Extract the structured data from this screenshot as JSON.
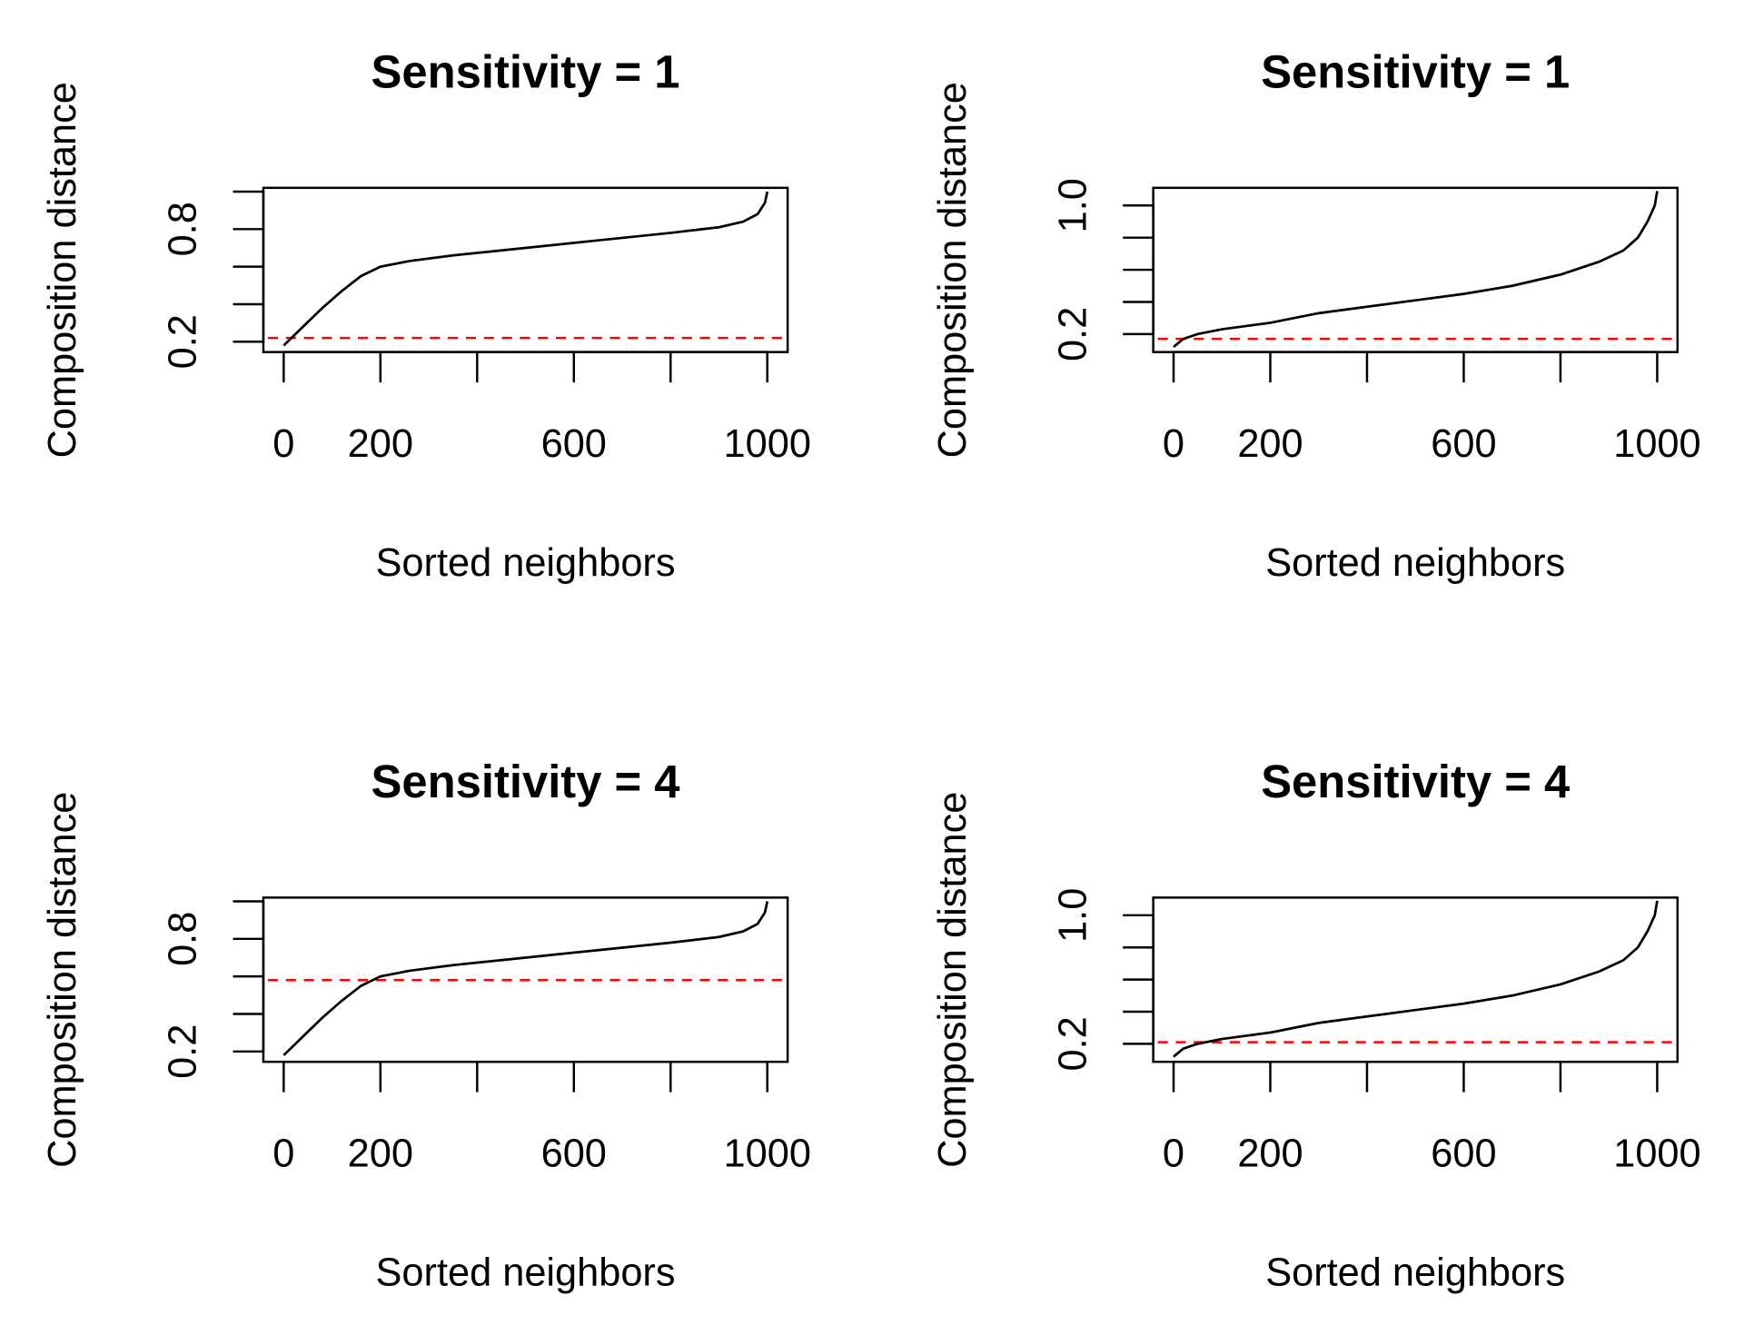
{
  "chart_data": [
    {
      "type": "line",
      "title": "Sensitivity =  1",
      "x_label": "Sorted neighbors",
      "y_label": "Composition distance",
      "x": [
        0,
        40,
        80,
        120,
        160,
        200,
        260,
        350,
        500,
        650,
        800,
        900,
        950,
        980,
        995,
        1000
      ],
      "series": [
        {
          "color": "#000000",
          "values": [
            0.18,
            0.28,
            0.38,
            0.47,
            0.55,
            0.6,
            0.63,
            0.66,
            0.7,
            0.74,
            0.78,
            0.81,
            0.84,
            0.88,
            0.94,
            1.0
          ]
        }
      ],
      "hline": 0.22,
      "hline_color": "#ff0000",
      "xlim": [
        -42,
        1042
      ],
      "ylim": [
        0.145,
        1.02
      ],
      "xticks": [
        0,
        200,
        {
          "value": 400,
          "label": null
        },
        600,
        {
          "value": 800,
          "label": null
        },
        1000
      ],
      "yticks": [
        0.2,
        {
          "value": 0.4,
          "label": null
        },
        {
          "value": 0.6,
          "label": null
        },
        0.8,
        {
          "value": 1,
          "label": null
        }
      ]
    },
    {
      "type": "line",
      "title": "Sensitivity =  1",
      "x_label": "Sorted neighbors",
      "y_label": "Composition distance",
      "x": [
        0,
        20,
        50,
        100,
        200,
        300,
        400,
        500,
        600,
        700,
        800,
        880,
        930,
        960,
        980,
        995,
        1000
      ],
      "series": [
        {
          "color": "#000000",
          "values": [
            0.12,
            0.17,
            0.2,
            0.23,
            0.27,
            0.33,
            0.37,
            0.41,
            0.45,
            0.5,
            0.57,
            0.65,
            0.72,
            0.8,
            0.9,
            1.0,
            1.09
          ]
        }
      ],
      "hline": 0.17,
      "hline_color": "#ff0000",
      "xlim": [
        -42,
        1042
      ],
      "ylim": [
        0.088,
        1.11
      ],
      "xticks": [
        0,
        200,
        {
          "value": 400,
          "label": null
        },
        600,
        {
          "value": 800,
          "label": null
        },
        1000
      ],
      "yticks": [
        0.2,
        {
          "value": 0.4,
          "label": null
        },
        {
          "value": 0.6,
          "label": null
        },
        {
          "value": 0.8,
          "label": null
        },
        {
          "value": 1,
          "label": "1.0"
        }
      ]
    },
    {
      "type": "line",
      "title": "Sensitivity =  4",
      "x_label": "Sorted neighbors",
      "y_label": "Composition distance",
      "x": [
        0,
        40,
        80,
        120,
        160,
        200,
        260,
        350,
        500,
        650,
        800,
        900,
        950,
        980,
        995,
        1000
      ],
      "series": [
        {
          "color": "#000000",
          "values": [
            0.18,
            0.28,
            0.38,
            0.47,
            0.55,
            0.6,
            0.63,
            0.66,
            0.7,
            0.74,
            0.78,
            0.81,
            0.84,
            0.88,
            0.94,
            1.0
          ]
        }
      ],
      "hline": 0.58,
      "hline_color": "#ff0000",
      "xlim": [
        -42,
        1042
      ],
      "ylim": [
        0.145,
        1.02
      ],
      "xticks": [
        0,
        200,
        {
          "value": 400,
          "label": null
        },
        600,
        {
          "value": 800,
          "label": null
        },
        1000
      ],
      "yticks": [
        0.2,
        {
          "value": 0.4,
          "label": null
        },
        {
          "value": 0.6,
          "label": null
        },
        0.8,
        {
          "value": 1,
          "label": null
        }
      ]
    },
    {
      "type": "line",
      "title": "Sensitivity =  4",
      "x_label": "Sorted neighbors",
      "y_label": "Composition distance",
      "x": [
        0,
        20,
        50,
        100,
        200,
        300,
        400,
        500,
        600,
        700,
        800,
        880,
        930,
        960,
        980,
        995,
        1000
      ],
      "series": [
        {
          "color": "#000000",
          "values": [
            0.12,
            0.17,
            0.2,
            0.23,
            0.27,
            0.33,
            0.37,
            0.41,
            0.45,
            0.5,
            0.57,
            0.65,
            0.72,
            0.8,
            0.9,
            1.0,
            1.09
          ]
        }
      ],
      "hline": 0.21,
      "hline_color": "#ff0000",
      "xlim": [
        -42,
        1042
      ],
      "ylim": [
        0.088,
        1.11
      ],
      "xticks": [
        0,
        200,
        {
          "value": 400,
          "label": null
        },
        600,
        {
          "value": 800,
          "label": null
        },
        1000
      ],
      "yticks": [
        0.2,
        {
          "value": 0.4,
          "label": null
        },
        {
          "value": 0.6,
          "label": null
        },
        {
          "value": 0.8,
          "label": null
        },
        {
          "value": 1,
          "label": "1.0"
        }
      ]
    }
  ]
}
